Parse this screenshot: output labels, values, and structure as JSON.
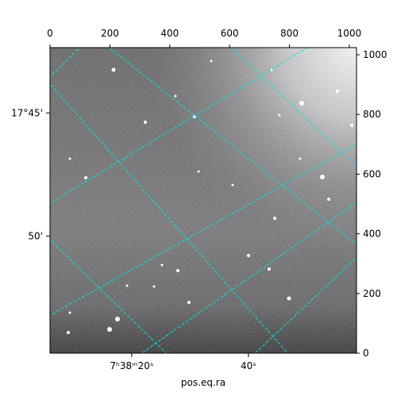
{
  "chart_data": {
    "type": "image",
    "xlabel": "pos.eq.ra",
    "xlim": [
      0,
      1024
    ],
    "ylim": [
      0,
      1024
    ],
    "xticks": [
      0,
      200,
      400,
      600,
      800,
      1000
    ],
    "yticks": [
      0,
      200,
      400,
      600,
      800,
      1000
    ],
    "bottom_ticks": [
      {
        "value": 273,
        "label": "7ʰ38ᵐ20ˢ"
      },
      {
        "value": 663,
        "label": "40ˢ"
      }
    ],
    "left_ticks": [
      {
        "value": 805,
        "label": "17°45'"
      },
      {
        "value": 392,
        "label": "50'"
      }
    ]
  }
}
